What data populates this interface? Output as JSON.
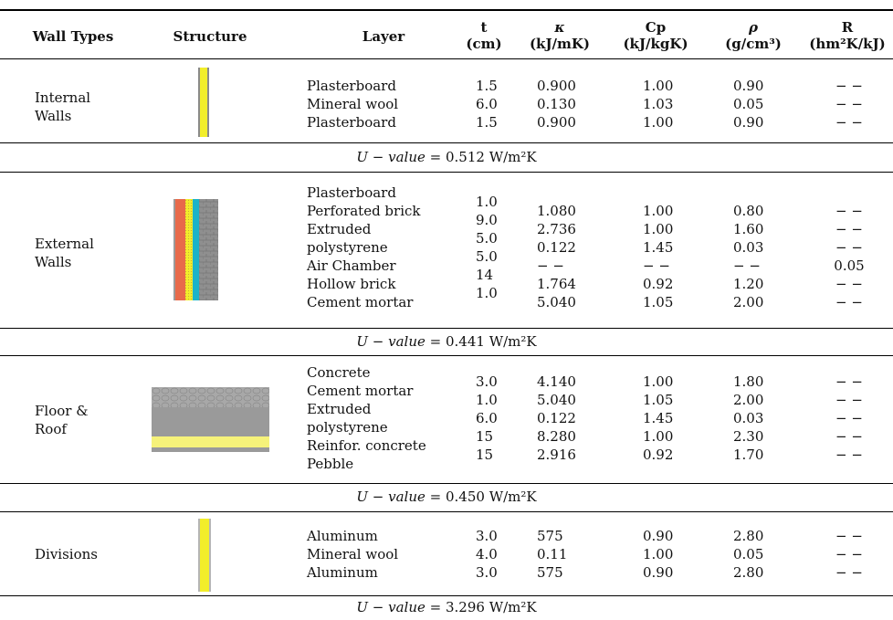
{
  "headers": {
    "wall_types": "Wall Types",
    "structure": "Structure",
    "layer": "Layer",
    "t": {
      "symbol": "t",
      "unit": "(cm)"
    },
    "kappa": {
      "symbol": "κ",
      "unit": "(kJ/mK)"
    },
    "cp": {
      "symbol": "Cp",
      "unit": "(kJ/kgK)"
    },
    "rho": {
      "symbol": "ρ",
      "unit": "(g/cm³)"
    },
    "r": {
      "symbol": "R",
      "unit": "(hm²K/kJ)"
    }
  },
  "groups": [
    {
      "name_line1": "Internal",
      "name_line2": "Walls",
      "layers": "Plasterboard\nMineral wool\nPlasterboard",
      "t": "1.5\n6.0\n1.5",
      "kappa": "0.900\n0.130\n0.900",
      "cp": "1.00\n1.03\n1.00",
      "rho": "0.90\n0.05\n0.90",
      "r": "− −\n− −\n− −",
      "u_label": "U − value",
      "u_value": "= 0.512 W/m²K"
    },
    {
      "name_line1": "External",
      "name_line2": "Walls",
      "layers": "Plasterboard\nPerforated brick\nExtruded\npolystyrene\nAir Chamber\nHollow brick\nCement mortar",
      "t": "1.0\n9.0\n5.0\n5.0\n14\n1.0",
      "kappa": "1.080\n2.736\n0.122\n− −\n1.764\n5.040",
      "cp": "1.00\n1.00\n1.45\n− −\n0.92\n1.05",
      "rho": "0.80\n1.60\n0.03\n− −\n1.20\n2.00",
      "r": "− −\n− −\n− −\n0.05\n− −\n− −",
      "u_label": "U − value",
      "u_value": "= 0.441 W/m²K"
    },
    {
      "name_line1": "Floor &",
      "name_line2": "Roof",
      "layers": "Concrete\nCement mortar\nExtruded\npolystyrene\nReinfor. concrete\nPebble",
      "t": "3.0\n1.0\n6.0\n15\n15",
      "kappa": "4.140\n5.040\n0.122\n8.280\n2.916",
      "cp": "1.00\n1.05\n1.45\n1.00\n0.92",
      "rho": "1.80\n2.00\n0.03\n2.30\n1.70",
      "r": "− −\n− −\n− −\n− −\n− −",
      "u_label": "U − value",
      "u_value": "= 0.450 W/m²K"
    },
    {
      "name_line1": "Divisions",
      "name_line2": "",
      "layers": "Aluminum\nMineral wool\nAluminum",
      "t": "3.0\n4.0\n3.0",
      "kappa": "575\n0.11\n575",
      "cp": "0.90\n1.00\n0.90",
      "rho": "2.80\n0.05\n2.80",
      "r": "− −\n− −\n− −",
      "u_label": "U − value",
      "u_value": "= 3.296 W/m²K"
    }
  ],
  "colors": {
    "plasterboard_gray": "#9a9a9a",
    "insulation_yellow": "#f2ee2a",
    "brick_red": "#e86a4a",
    "air_cyan": "#1bb3c8",
    "hollow_brick_gray": "#8a8a8a",
    "concrete_gray": "#a8a8a8",
    "floor_yellow": "#f6f27a"
  }
}
